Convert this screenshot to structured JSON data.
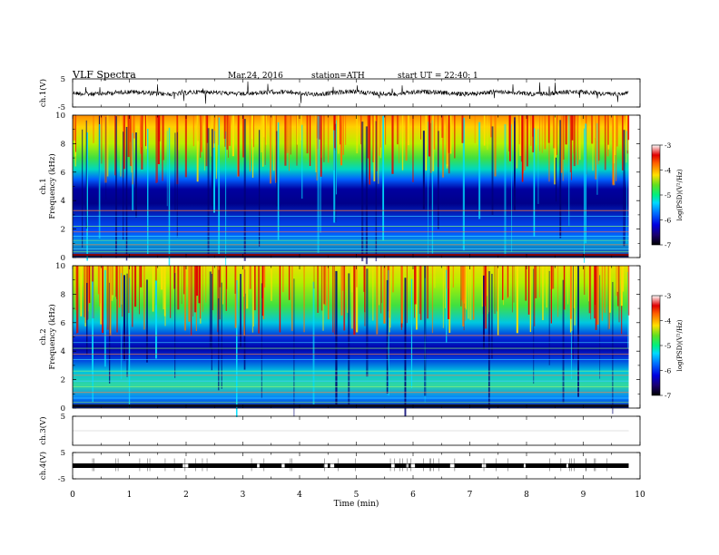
{
  "header": {
    "title": "VLF  Spectra",
    "date": "Mar.24, 2016",
    "station": "station=ATH",
    "start": "start  UT  =   22:40: 1"
  },
  "chart_data": {
    "type": "heatmap",
    "xlabel": "Time  (min)",
    "xlim": [
      0,
      10
    ],
    "x_ticks": [
      "0",
      "1",
      "2",
      "3",
      "4",
      "5",
      "6",
      "7",
      "8",
      "9",
      "10"
    ],
    "record_end_min": 9.8,
    "panels": [
      {
        "ylabel": "ch.1(V)",
        "kind": "waveform",
        "ylim": [
          -5,
          5
        ],
        "y_ticks": [
          "5",
          "-5"
        ]
      },
      {
        "ylabel": "ch.1",
        "sublabel": "Frequency  (kHz)",
        "kind": "spectrogram",
        "ylim": [
          0,
          10
        ],
        "y_ticks": [
          "0",
          "2",
          "4",
          "6",
          "8",
          "10"
        ],
        "colorbar": {
          "label": "log(PSD)(V²/Hz)",
          "range": [
            -7,
            -3
          ],
          "ticks": [
            "-3",
            "-4",
            "-5",
            "-6",
            "-7"
          ]
        }
      },
      {
        "ylabel": "ch.2",
        "sublabel": "Frequency  (kHz)",
        "kind": "spectrogram",
        "ylim": [
          0,
          10
        ],
        "y_ticks": [
          "0",
          "2",
          "4",
          "6",
          "8",
          "10"
        ],
        "colorbar": {
          "label": "log(PSD)(V²/Hz)",
          "range": [
            -7,
            -3
          ],
          "ticks": [
            "-3",
            "-4",
            "-5",
            "-6",
            "-7"
          ]
        }
      },
      {
        "ylabel": "ch.3(V)",
        "kind": "waveform",
        "ylim": [
          -5,
          5
        ],
        "y_ticks": [
          "5"
        ]
      },
      {
        "ylabel": "ch.4(V)",
        "kind": "waveform",
        "ylim": [
          -5,
          5
        ],
        "y_ticks": [
          "5",
          "-5"
        ]
      }
    ],
    "colormap": [
      "#000000",
      "#1a0070",
      "#0000d0",
      "#0050ff",
      "#00b0ff",
      "#00f0c0",
      "#30e030",
      "#b0f000",
      "#ffe000",
      "#ff8000",
      "#e00000",
      "#ffffff"
    ]
  }
}
